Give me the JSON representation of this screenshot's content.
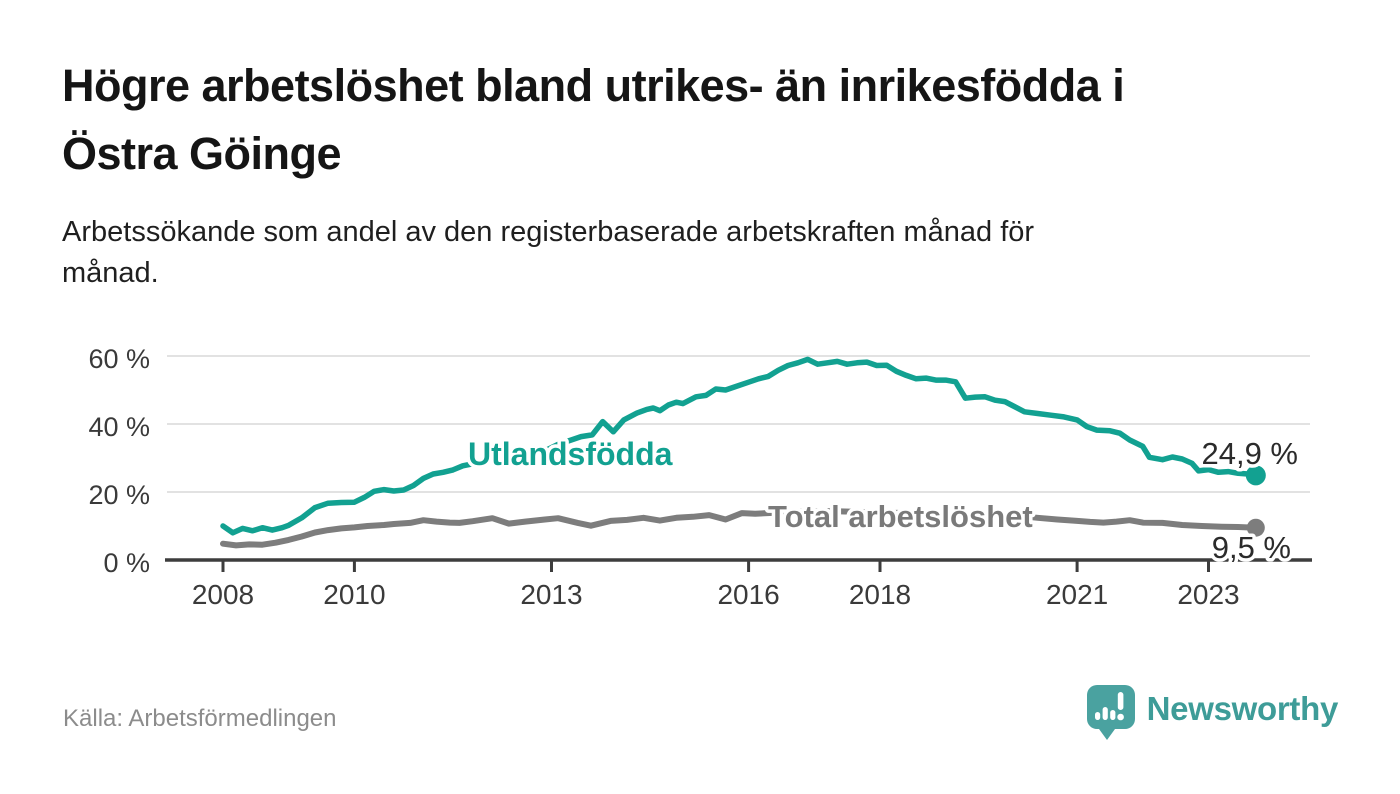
{
  "header": {
    "title_lines": [
      "Högre arbetslöshet bland utrikes- än inrikesfödda i",
      "Östra Göinge"
    ],
    "subtitle_lines": [
      "Arbetssökande som andel av den registerbaserade arbetskraften månad för",
      "månad."
    ]
  },
  "footer": {
    "source": "Källa: Arbetsförmedlingen",
    "brand": "Newsworthy",
    "brand_color": "#3e9c98",
    "logo_icon": "speech-bubble-bar-chart-exclamation"
  },
  "chart_data": {
    "type": "line",
    "title": "Högre arbetslöshet bland utrikes- än inrikesfödda i Östra Göinge",
    "subtitle": "Arbetssökande som andel av den registerbaserade arbetskraften månad för månad.",
    "xlabel": "",
    "ylabel": "",
    "xlim": [
      2007.2,
      2024.6
    ],
    "ylim": [
      0,
      63
    ],
    "grid": true,
    "grid_color": "#d9d9d9",
    "axis_color": "#3d3d3d",
    "tick_label_color": "#3a3a3a",
    "yticks": [
      0,
      20,
      40,
      60
    ],
    "ytick_labels": [
      "0 %",
      "20 %",
      "40 %",
      "60 %"
    ],
    "xticks": [
      2008,
      2010,
      2013,
      2016,
      2018,
      2021,
      2023
    ],
    "xtick_labels": [
      "2008",
      "2010",
      "2013",
      "2016",
      "2018",
      "2021",
      "2023"
    ],
    "legend_position": "inline-labels",
    "series": [
      {
        "name": "Utlandsfödda",
        "color": "#12a191",
        "end_label": "24,9 %",
        "end_value": 24.9,
        "points": [
          [
            2008.0,
            10.0
          ],
          [
            2008.15,
            8.0
          ],
          [
            2008.3,
            9.3
          ],
          [
            2008.45,
            8.6
          ],
          [
            2008.6,
            9.5
          ],
          [
            2008.75,
            8.8
          ],
          [
            2008.9,
            9.5
          ],
          [
            2009.0,
            10.2
          ],
          [
            2009.2,
            12.4
          ],
          [
            2009.4,
            15.4
          ],
          [
            2009.6,
            16.7
          ],
          [
            2009.8,
            16.9
          ],
          [
            2010.0,
            17.0
          ],
          [
            2010.15,
            18.4
          ],
          [
            2010.3,
            20.2
          ],
          [
            2010.45,
            20.7
          ],
          [
            2010.6,
            20.3
          ],
          [
            2010.75,
            20.6
          ],
          [
            2010.9,
            21.9
          ],
          [
            2011.05,
            24.0
          ],
          [
            2011.2,
            25.3
          ],
          [
            2011.35,
            25.8
          ],
          [
            2011.5,
            26.5
          ],
          [
            2011.65,
            27.7
          ],
          [
            2011.8,
            28.3
          ],
          [
            2012.0,
            29.3
          ],
          [
            2012.2,
            30.2
          ],
          [
            2012.4,
            31.0
          ],
          [
            2012.6,
            31.8
          ],
          [
            2012.8,
            32.3
          ],
          [
            2012.95,
            32.6
          ],
          [
            2013.1,
            34.0
          ],
          [
            2013.3,
            35.3
          ],
          [
            2013.45,
            36.3
          ],
          [
            2013.62,
            36.8
          ],
          [
            2013.78,
            40.7
          ],
          [
            2013.94,
            37.7
          ],
          [
            2014.1,
            41.2
          ],
          [
            2014.3,
            43.2
          ],
          [
            2014.45,
            44.3
          ],
          [
            2014.55,
            44.7
          ],
          [
            2014.65,
            43.9
          ],
          [
            2014.78,
            45.6
          ],
          [
            2014.9,
            46.4
          ],
          [
            2015.0,
            46.0
          ],
          [
            2015.2,
            48.0
          ],
          [
            2015.35,
            48.4
          ],
          [
            2015.5,
            50.3
          ],
          [
            2015.65,
            50.0
          ],
          [
            2015.8,
            51.0
          ],
          [
            2016.0,
            52.3
          ],
          [
            2016.15,
            53.3
          ],
          [
            2016.3,
            54.0
          ],
          [
            2016.45,
            55.8
          ],
          [
            2016.6,
            57.2
          ],
          [
            2016.75,
            58.0
          ],
          [
            2016.9,
            59.0
          ],
          [
            2017.05,
            57.6
          ],
          [
            2017.2,
            58.0
          ],
          [
            2017.35,
            58.4
          ],
          [
            2017.5,
            57.6
          ],
          [
            2017.65,
            58.0
          ],
          [
            2017.8,
            58.2
          ],
          [
            2017.95,
            57.2
          ],
          [
            2018.1,
            57.3
          ],
          [
            2018.25,
            55.5
          ],
          [
            2018.4,
            54.3
          ],
          [
            2018.55,
            53.3
          ],
          [
            2018.7,
            53.5
          ],
          [
            2018.85,
            52.9
          ],
          [
            2019.0,
            52.9
          ],
          [
            2019.15,
            52.4
          ],
          [
            2019.3,
            47.6
          ],
          [
            2019.45,
            47.9
          ],
          [
            2019.6,
            48.0
          ],
          [
            2019.75,
            47.0
          ],
          [
            2019.9,
            46.6
          ],
          [
            2020.0,
            45.6
          ],
          [
            2020.2,
            43.6
          ],
          [
            2020.4,
            43.1
          ],
          [
            2020.6,
            42.6
          ],
          [
            2020.8,
            42.1
          ],
          [
            2021.0,
            41.2
          ],
          [
            2021.15,
            39.2
          ],
          [
            2021.3,
            38.2
          ],
          [
            2021.5,
            38.0
          ],
          [
            2021.65,
            37.3
          ],
          [
            2021.8,
            35.3
          ],
          [
            2022.0,
            33.4
          ],
          [
            2022.1,
            30.2
          ],
          [
            2022.3,
            29.5
          ],
          [
            2022.45,
            30.3
          ],
          [
            2022.6,
            29.7
          ],
          [
            2022.75,
            28.4
          ],
          [
            2022.85,
            26.2
          ],
          [
            2023.0,
            26.6
          ],
          [
            2023.15,
            25.8
          ],
          [
            2023.3,
            26.0
          ],
          [
            2023.45,
            25.5
          ],
          [
            2023.6,
            25.3
          ],
          [
            2023.72,
            24.9
          ]
        ]
      },
      {
        "name": "Total arbetslöshet",
        "color": "#7d7d7d",
        "end_label": "9,5 %",
        "end_value": 9.5,
        "points": [
          [
            2008.0,
            4.8
          ],
          [
            2008.2,
            4.3
          ],
          [
            2008.4,
            4.6
          ],
          [
            2008.6,
            4.5
          ],
          [
            2008.8,
            5.1
          ],
          [
            2009.0,
            5.9
          ],
          [
            2009.2,
            6.9
          ],
          [
            2009.4,
            8.1
          ],
          [
            2009.6,
            8.8
          ],
          [
            2009.8,
            9.3
          ],
          [
            2010.0,
            9.6
          ],
          [
            2010.2,
            10.0
          ],
          [
            2010.45,
            10.3
          ],
          [
            2010.6,
            10.6
          ],
          [
            2010.85,
            10.9
          ],
          [
            2011.05,
            11.7
          ],
          [
            2011.25,
            11.3
          ],
          [
            2011.45,
            11.0
          ],
          [
            2011.6,
            10.9
          ],
          [
            2011.8,
            11.4
          ],
          [
            2012.1,
            12.3
          ],
          [
            2012.35,
            10.7
          ],
          [
            2012.6,
            11.3
          ],
          [
            2012.9,
            11.9
          ],
          [
            2013.1,
            12.3
          ],
          [
            2013.4,
            10.9
          ],
          [
            2013.6,
            10.1
          ],
          [
            2013.9,
            11.5
          ],
          [
            2014.15,
            11.8
          ],
          [
            2014.4,
            12.4
          ],
          [
            2014.65,
            11.6
          ],
          [
            2014.9,
            12.4
          ],
          [
            2015.15,
            12.7
          ],
          [
            2015.4,
            13.2
          ],
          [
            2015.65,
            11.9
          ],
          [
            2015.9,
            13.8
          ],
          [
            2016.1,
            13.6
          ],
          [
            2016.4,
            13.9
          ],
          [
            2016.8,
            14.2
          ],
          [
            2017.2,
            14.4
          ],
          [
            2017.6,
            14.2
          ],
          [
            2018.0,
            14.0
          ],
          [
            2018.4,
            13.8
          ],
          [
            2018.8,
            13.6
          ],
          [
            2019.2,
            13.5
          ],
          [
            2019.6,
            13.4
          ],
          [
            2019.9,
            13.5
          ],
          [
            2020.1,
            13.0
          ],
          [
            2020.4,
            12.4
          ],
          [
            2020.7,
            11.9
          ],
          [
            2021.0,
            11.5
          ],
          [
            2021.2,
            11.2
          ],
          [
            2021.4,
            11.0
          ],
          [
            2021.6,
            11.3
          ],
          [
            2021.8,
            11.7
          ],
          [
            2022.0,
            11.0
          ],
          [
            2022.3,
            10.9
          ],
          [
            2022.6,
            10.3
          ],
          [
            2022.9,
            10.0
          ],
          [
            2023.2,
            9.8
          ],
          [
            2023.45,
            9.7
          ],
          [
            2023.72,
            9.5
          ]
        ]
      }
    ]
  }
}
